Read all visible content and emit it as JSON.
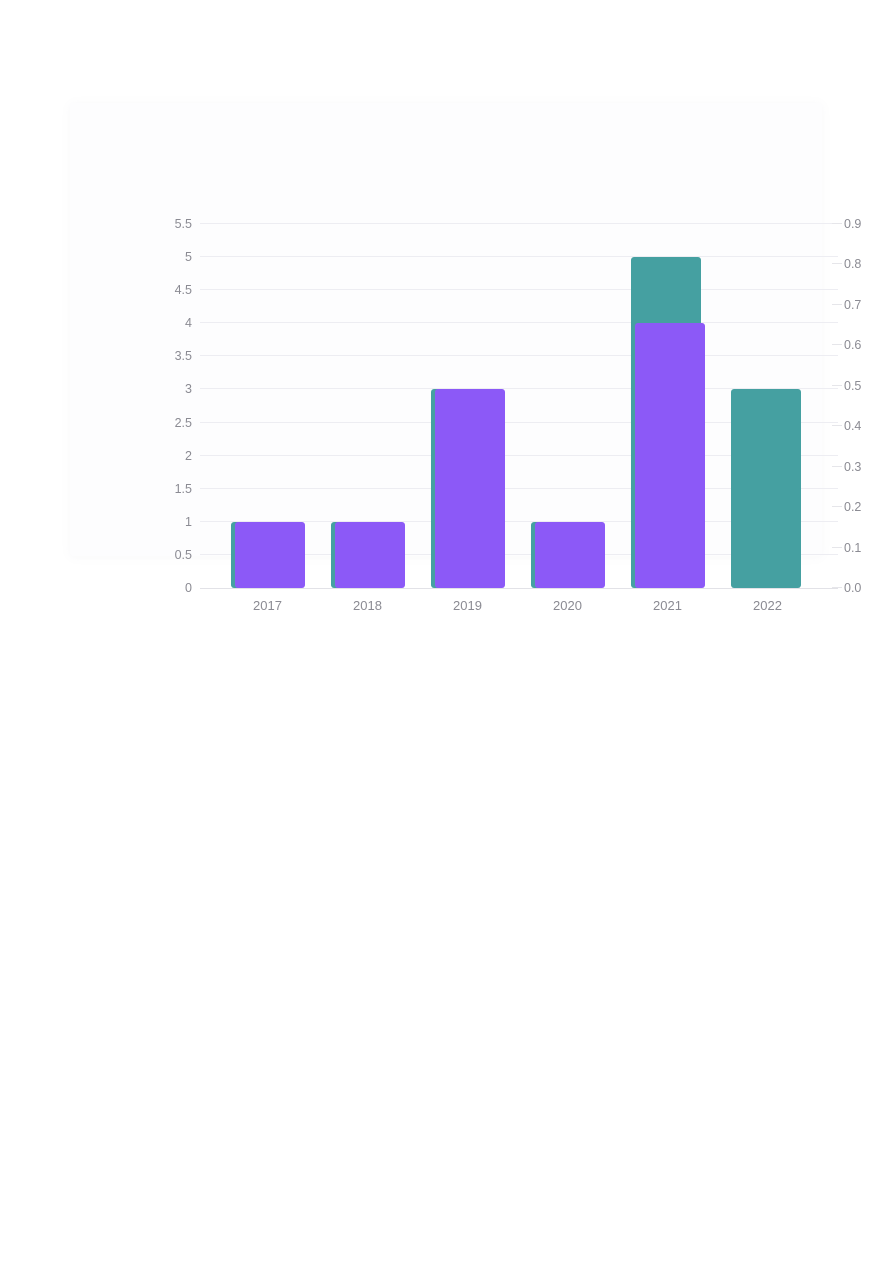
{
  "chart_data": {
    "type": "bar",
    "barmode": "overlay",
    "title": "",
    "xlabel": "",
    "ylabel": "",
    "grid": true,
    "legend": "none",
    "categories": [
      "2017",
      "2018",
      "2019",
      "2020",
      "2021",
      "2022"
    ],
    "series": [
      {
        "name": "teal-series",
        "color": "#45a0a1",
        "axis": "left",
        "values": [
          1,
          1,
          3,
          1,
          5,
          3
        ]
      },
      {
        "name": "purple-series",
        "color": "#8c59f7",
        "axis": "left",
        "values": [
          1,
          1,
          3,
          1,
          4,
          0
        ]
      }
    ],
    "left_axis": {
      "min": 0,
      "max": 5.5,
      "tick_values": [
        0,
        0.5,
        1,
        1.5,
        2,
        2.5,
        3,
        3.5,
        4,
        4.5,
        5,
        5.5
      ],
      "tick_labels": [
        "0",
        "0.5",
        "1",
        "1.5",
        "2",
        "2.5",
        "3",
        "3.5",
        "4",
        "4.5",
        "5",
        "5.5"
      ]
    },
    "right_axis": {
      "min": 0,
      "max": 0.9,
      "tick_values": [
        0,
        0.1,
        0.2,
        0.3,
        0.4,
        0.5,
        0.6,
        0.7,
        0.8,
        0.9
      ],
      "tick_labels": [
        "0.0",
        "0.1",
        "0.2",
        "0.3",
        "0.4",
        "0.5",
        "0.6",
        "0.7",
        "0.8",
        "0.9"
      ]
    },
    "colors": {
      "grid": "#ededf2",
      "axis_text": "#8b8b93",
      "card_background": "#fdfdfe",
      "page_background": "#ffffff"
    }
  }
}
